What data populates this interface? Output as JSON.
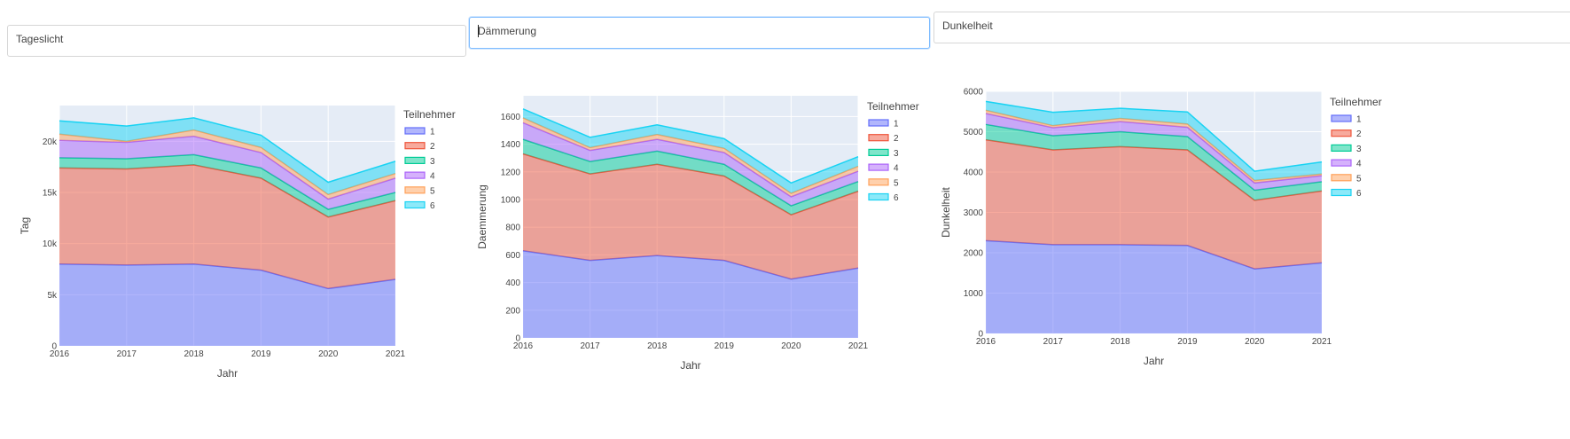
{
  "headers": [
    {
      "text": "Tageslicht"
    },
    {
      "text": "Dämmerung"
    },
    {
      "text": "Dunkelheit"
    }
  ],
  "colors": [
    "#636efa",
    "#ef553b",
    "#00cc96",
    "#ab63fa",
    "#ffa15a",
    "#19d3f3"
  ],
  "chart_data": [
    {
      "type": "area",
      "stacked": true,
      "x": [
        2016,
        2017,
        2018,
        2019,
        2020,
        2021
      ],
      "xlabel": "Jahr",
      "ylabel": "Tag",
      "ylim": [
        0,
        23500
      ],
      "yticks": [
        0,
        5000,
        10000,
        15000,
        20000
      ],
      "yticklabels": [
        "0",
        "5k",
        "10k",
        "15k",
        "20k"
      ],
      "legend_title": "Teilnehmer",
      "legend_position": "right",
      "series": [
        {
          "name": "1",
          "values": [
            8000,
            7900,
            8000,
            7400,
            5600,
            6500
          ]
        },
        {
          "name": "2",
          "values": [
            9400,
            9400,
            9700,
            9000,
            7000,
            7700
          ]
        },
        {
          "name": "3",
          "values": [
            1000,
            1000,
            1000,
            1000,
            750,
            800
          ]
        },
        {
          "name": "4",
          "values": [
            1700,
            1600,
            1800,
            1500,
            1000,
            1400
          ]
        },
        {
          "name": "5",
          "values": [
            600,
            100,
            600,
            500,
            450,
            450
          ]
        },
        {
          "name": "6",
          "values": [
            1300,
            1500,
            1200,
            1200,
            1200,
            1200
          ]
        }
      ]
    },
    {
      "type": "area",
      "stacked": true,
      "x": [
        2016,
        2017,
        2018,
        2019,
        2020,
        2021
      ],
      "xlabel": "Jahr",
      "ylabel": "Daemmerung",
      "ylim": [
        0,
        1750
      ],
      "yticks": [
        0,
        200,
        400,
        600,
        800,
        1000,
        1200,
        1400,
        1600
      ],
      "yticklabels": [
        "0",
        "200",
        "400",
        "600",
        "800",
        "1000",
        "1200",
        "1400",
        "1600"
      ],
      "legend_title": "Teilnehmer",
      "legend_position": "right",
      "series": [
        {
          "name": "1",
          "values": [
            630,
            560,
            595,
            560,
            425,
            505
          ]
        },
        {
          "name": "2",
          "values": [
            700,
            625,
            660,
            610,
            465,
            555
          ]
        },
        {
          "name": "3",
          "values": [
            105,
            90,
            95,
            85,
            65,
            70
          ]
        },
        {
          "name": "4",
          "values": [
            120,
            80,
            85,
            85,
            65,
            75
          ]
        },
        {
          "name": "5",
          "values": [
            35,
            20,
            35,
            30,
            25,
            35
          ]
        },
        {
          "name": "6",
          "values": [
            65,
            75,
            70,
            70,
            75,
            70
          ]
        }
      ]
    },
    {
      "type": "area",
      "stacked": true,
      "x": [
        2016,
        2017,
        2018,
        2019,
        2020,
        2021
      ],
      "xlabel": "Jahr",
      "ylabel": "Dunkelheit",
      "ylim": [
        0,
        6000
      ],
      "yticks": [
        0,
        1000,
        2000,
        3000,
        4000,
        5000,
        6000
      ],
      "yticklabels": [
        "0",
        "1000",
        "2000",
        "3000",
        "4000",
        "5000",
        "6000"
      ],
      "legend_title": "Teilnehmer",
      "legend_position": "right",
      "series": [
        {
          "name": "1",
          "values": [
            2300,
            2200,
            2200,
            2180,
            1600,
            1750
          ]
        },
        {
          "name": "2",
          "values": [
            2500,
            2350,
            2430,
            2370,
            1700,
            1780
          ]
        },
        {
          "name": "3",
          "values": [
            380,
            350,
            370,
            330,
            250,
            230
          ]
        },
        {
          "name": "4",
          "values": [
            270,
            200,
            250,
            230,
            180,
            150
          ]
        },
        {
          "name": "5",
          "values": [
            80,
            50,
            80,
            80,
            60,
            40
          ]
        },
        {
          "name": "6",
          "values": [
            220,
            330,
            250,
            300,
            230,
            300
          ]
        }
      ]
    }
  ]
}
